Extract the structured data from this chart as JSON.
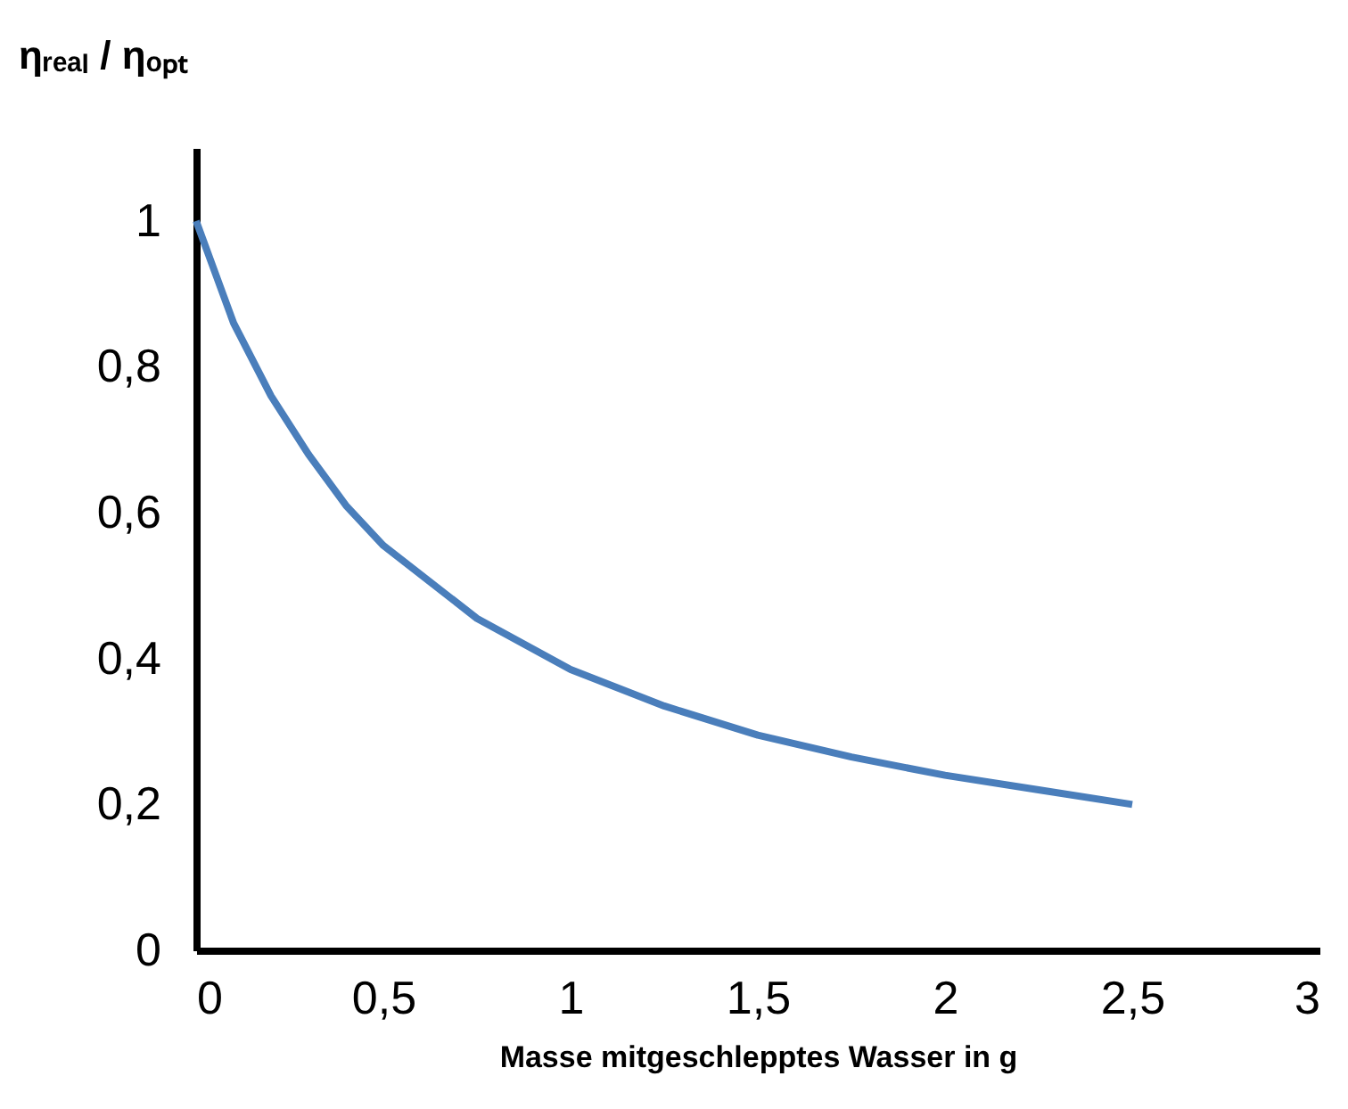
{
  "chart_data": {
    "type": "line",
    "xlabel": "Masse mitgeschlepptes Wasser in g",
    "ylabel": "ηᵣₑₐₗ / ηₒₚₜ",
    "x": [
      0,
      0.1,
      0.2,
      0.3,
      0.4,
      0.5,
      0.75,
      1,
      1.25,
      1.5,
      1.75,
      2,
      2.25,
      2.5
    ],
    "series": [
      {
        "color": "#4a7ebb",
        "values": [
          1,
          0.86,
          0.76,
          0.68,
          0.61,
          0.555,
          0.455,
          0.385,
          0.335,
          0.295,
          0.265,
          0.24,
          0.22,
          0.2
        ]
      }
    ],
    "xlim": [
      0,
      3
    ],
    "ylim": [
      0,
      1.1
    ],
    "xticks": [
      0,
      {
        "value": 0.5,
        "label": "0,5"
      },
      1,
      {
        "value": 1.5,
        "label": "1,5"
      },
      2,
      {
        "value": 2.5,
        "label": "2,5"
      },
      3
    ],
    "yticks": [
      0,
      {
        "value": 0.2,
        "label": "0,2"
      },
      {
        "value": 0.4,
        "label": "0,4"
      },
      {
        "value": 0.6,
        "label": "0,6"
      },
      {
        "value": 0.8,
        "label": "0,8"
      },
      1
    ],
    "grid": false,
    "marker": "none",
    "line_style": "solid"
  }
}
